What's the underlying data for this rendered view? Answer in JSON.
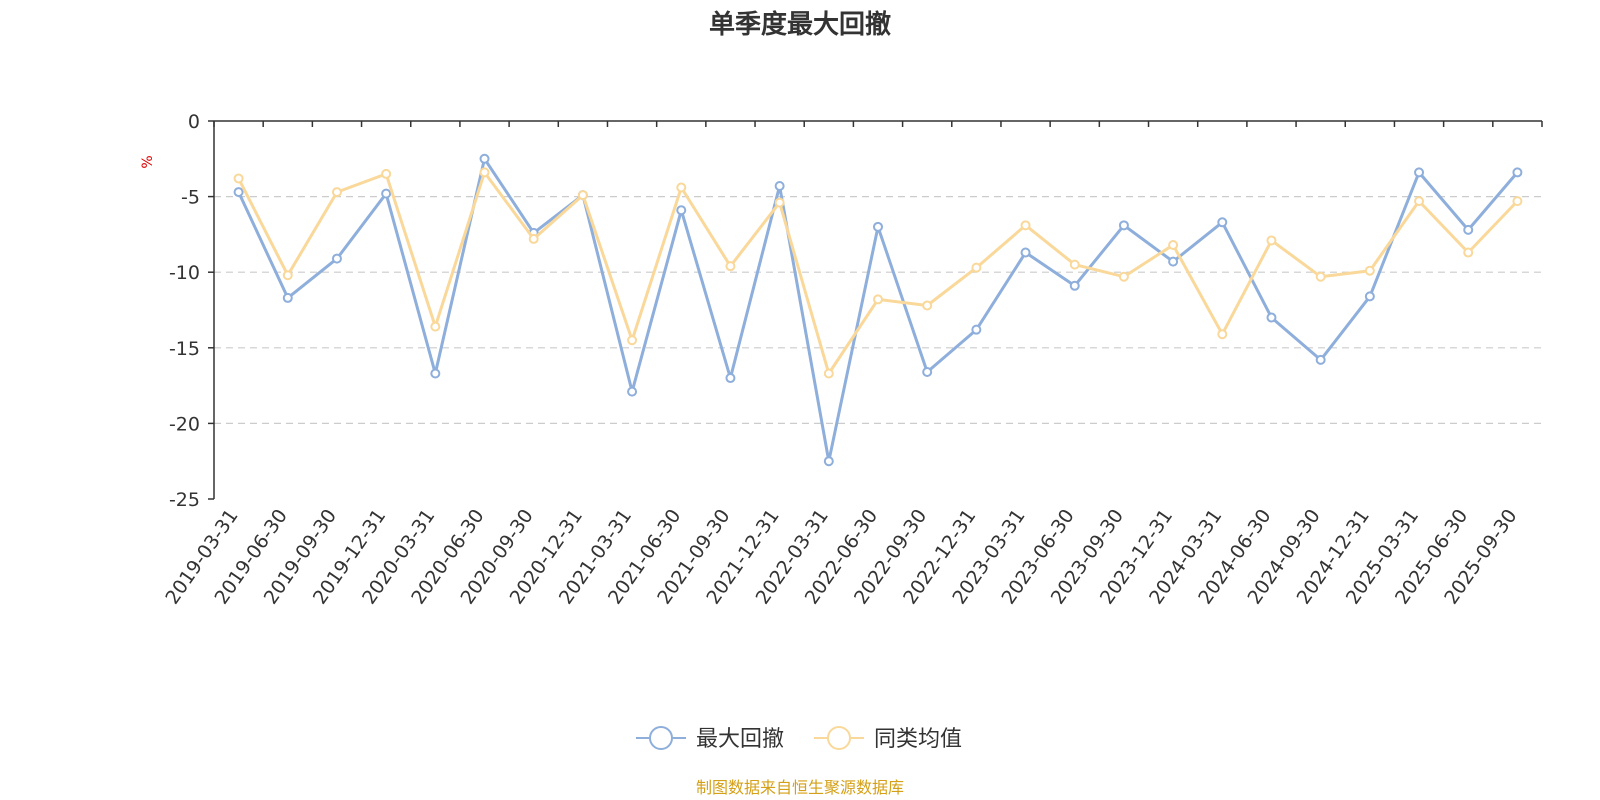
{
  "chart_data": {
    "type": "line",
    "title": "单季度最大回撤",
    "ylabel": "%",
    "ylim": [
      -25,
      0
    ],
    "yticks": [
      0,
      -5,
      -10,
      -15,
      -20,
      -25
    ],
    "grid": true,
    "legend_position": "bottom",
    "categories": [
      "2019-03-31",
      "2019-06-30",
      "2019-09-30",
      "2019-12-31",
      "2020-03-31",
      "2020-06-30",
      "2020-09-30",
      "2020-12-31",
      "2021-03-31",
      "2021-06-30",
      "2021-09-30",
      "2021-12-31",
      "2022-03-31",
      "2022-06-30",
      "2022-09-30",
      "2022-12-31",
      "2023-03-31",
      "2023-06-30",
      "2023-09-30",
      "2023-12-31",
      "2024-03-31",
      "2024-06-30",
      "2024-09-30",
      "2024-12-31",
      "2025-03-31",
      "2025-06-30",
      "2025-09-30"
    ],
    "series": [
      {
        "name": "最大回撤",
        "color": "#8eaedb",
        "values": [
          -4.7,
          -11.7,
          -9.1,
          -4.8,
          -16.7,
          -2.5,
          -7.4,
          -4.9,
          -17.9,
          -5.9,
          -17.0,
          -4.3,
          -22.5,
          -7.0,
          -16.6,
          -13.8,
          -8.7,
          -10.9,
          -6.9,
          -9.3,
          -6.7,
          -13.0,
          -15.8,
          -11.6,
          -3.4,
          -7.2,
          -3.4
        ]
      },
      {
        "name": "同类均值",
        "color": "#f9d89a",
        "values": [
          -3.8,
          -10.2,
          -4.7,
          -3.5,
          -13.6,
          -3.4,
          -7.8,
          -4.9,
          -14.5,
          -4.4,
          -9.6,
          -5.4,
          -16.7,
          -11.8,
          -12.2,
          -9.7,
          -6.9,
          -9.5,
          -10.3,
          -8.2,
          -14.1,
          -7.9,
          -10.3,
          -9.9,
          -5.3,
          -8.7,
          -5.3
        ]
      }
    ]
  },
  "source_note": "制图数据来自恒生聚源数据库"
}
